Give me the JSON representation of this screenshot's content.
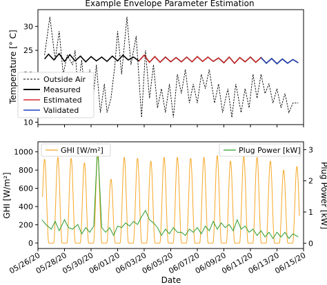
{
  "chart_data": [
    {
      "type": "line",
      "title": "Example Envelope Parameter Estimation",
      "ylabel": "Temperature [° C]",
      "ylim": [
        9.5,
        33.5
      ],
      "xlim": [
        0,
        20
      ],
      "yticks": [
        10,
        15,
        20,
        25,
        30
      ],
      "grid": false,
      "legend_position": "lower-left",
      "series": [
        {
          "name": "Outside Air",
          "color": "#000000",
          "style": "dashed",
          "x": [
            0.5,
            0.9,
            1.3,
            1.6,
            1.9,
            2.2,
            2.6,
            2.8,
            3.0,
            3.3,
            3.6,
            3.9,
            4.1,
            4.4,
            4.7,
            5.0,
            5.2,
            5.5,
            5.8,
            6.0,
            6.3,
            6.7,
            7.0,
            7.4,
            7.8,
            8.1,
            8.4,
            8.7,
            9.0,
            9.3,
            9.6,
            9.9,
            10.2,
            10.5,
            10.8,
            11.1,
            11.4,
            11.7,
            12.0,
            12.3,
            12.6,
            12.9,
            13.3,
            13.6,
            13.9,
            14.3,
            14.6,
            14.9,
            15.3,
            15.6,
            15.9,
            16.2,
            16.5,
            16.8,
            17.1,
            17.4,
            17.7,
            18.0,
            18.3,
            18.6,
            18.9,
            19.2,
            19.6
          ],
          "y": [
            24,
            32,
            23,
            29,
            20,
            24,
            22,
            25,
            17,
            23,
            13,
            21,
            13,
            22,
            12,
            18,
            12,
            15,
            22,
            29,
            20,
            32,
            22,
            28,
            11,
            25,
            15,
            22,
            13,
            17,
            12,
            18,
            11,
            20,
            16,
            21,
            14,
            18,
            14,
            20,
            17,
            21,
            14,
            18,
            12,
            17,
            11,
            18,
            12,
            17,
            13,
            20,
            15,
            20,
            16,
            18,
            14,
            17,
            13,
            16,
            12,
            14,
            14
          ]
        },
        {
          "name": "Measured",
          "color": "#000000",
          "style": "solid",
          "x": [
            0.5,
            0.8,
            1.2,
            1.6,
            2.0,
            2.4,
            2.8,
            3.2,
            3.6,
            4.0,
            4.4,
            4.8,
            5.2,
            5.6,
            6.0,
            6.4,
            6.8,
            7.2,
            7.6,
            8.0,
            8.4,
            8.8,
            9.2,
            9.6,
            10.0,
            10.4,
            10.8,
            11.2,
            11.6,
            12.0,
            12.4,
            12.8,
            13.2,
            13.6,
            14.0,
            14.4,
            14.8,
            15.2,
            15.6,
            16.0,
            16.4,
            16.8,
            17.2,
            17.6,
            18.0,
            18.4,
            18.8,
            19.2,
            19.6
          ],
          "y": [
            23.2,
            24.2,
            23.0,
            24.3,
            22.7,
            24.1,
            22.8,
            23.8,
            22.6,
            23.7,
            22.8,
            23.6,
            22.7,
            23.8,
            22.8,
            24.0,
            23.0,
            23.6,
            22.8,
            24.0,
            22.5,
            23.7,
            22.5,
            23.6,
            22.6,
            23.5,
            22.6,
            23.6,
            22.6,
            23.7,
            22.7,
            23.6,
            22.7,
            23.4,
            22.4,
            23.6,
            22.3,
            23.5,
            22.6,
            23.6,
            22.5,
            23.5,
            22.3,
            23.3,
            22.2,
            23.2,
            22.3,
            23.1,
            22.4
          ]
        },
        {
          "name": "Estimated",
          "color": "#d62728",
          "style": "solid",
          "x": [
            7.6,
            8.0,
            8.4,
            8.8,
            9.2,
            9.6,
            10.0,
            10.4,
            10.8,
            11.2,
            11.6,
            12.0,
            12.4,
            12.8,
            13.2,
            13.6,
            14.0,
            14.4,
            14.8,
            15.2,
            15.6,
            16.0,
            16.4,
            16.8
          ],
          "y": [
            22.8,
            24.0,
            22.5,
            23.7,
            22.5,
            23.6,
            22.6,
            23.5,
            22.6,
            23.6,
            22.6,
            23.7,
            22.7,
            23.6,
            22.7,
            23.4,
            22.4,
            23.6,
            22.3,
            23.5,
            22.6,
            23.6,
            22.5,
            23.5
          ]
        },
        {
          "name": "Validated",
          "color": "#1f3fbf",
          "style": "solid",
          "x": [
            16.8,
            17.2,
            17.6,
            18.0,
            18.4,
            18.8,
            19.2,
            19.6
          ],
          "y": [
            23.5,
            22.3,
            23.3,
            22.2,
            23.2,
            22.3,
            23.1,
            22.4
          ]
        }
      ]
    },
    {
      "type": "line",
      "xlabel": "Date",
      "ylabel": "GHI [W/m²]",
      "ylabel_right": "Plug Power [kW]",
      "ylim": [
        -60,
        1110
      ],
      "ylim_right": [
        -0.17,
        3.25
      ],
      "xlim": [
        0,
        20
      ],
      "yticks": [
        0,
        200,
        400,
        600,
        800,
        1000
      ],
      "yticks_right": [
        0,
        1,
        2,
        3
      ],
      "categories": [
        "05/26/20",
        "05/28/20",
        "05/30/20",
        "06/01/20",
        "06/03/20",
        "06/05/20",
        "06/07/20",
        "06/09/20",
        "06/11/20",
        "06/13/20",
        "06/15/20"
      ],
      "category_x": [
        0,
        2,
        4,
        6,
        8,
        10,
        12,
        14,
        16,
        18,
        20
      ],
      "grid": false,
      "series": [
        {
          "name": "GHI [W/m²]",
          "color": "#f5a623",
          "axis": "left",
          "peak_x": [
            0.5,
            1.5,
            2.5,
            3.5,
            4.5,
            5.5,
            6.5,
            7.5,
            8.5,
            9.5,
            10.5,
            11.5,
            12.5,
            13.5,
            14.5,
            15.5,
            16.5,
            17.5,
            18.5,
            19.5
          ],
          "peak_y": [
            920,
            940,
            930,
            880,
            960,
            700,
            940,
            930,
            900,
            940,
            940,
            930,
            940,
            960,
            900,
            950,
            940,
            900,
            800,
            840
          ],
          "baseline": 0
        },
        {
          "name": "Plug Power [kW]",
          "color": "#2a9d2a",
          "axis": "right",
          "x": [
            0.3,
            0.6,
            1.0,
            1.3,
            1.6,
            2.0,
            2.3,
            2.6,
            3.0,
            3.3,
            3.6,
            3.9,
            4.2,
            4.5,
            4.8,
            5.1,
            5.4,
            5.7,
            6.0,
            6.3,
            6.6,
            6.9,
            7.2,
            7.5,
            7.8,
            8.1,
            8.4,
            8.7,
            9.0,
            9.3,
            9.6,
            9.9,
            10.2,
            10.5,
            10.8,
            11.1,
            11.4,
            11.7,
            12.0,
            12.3,
            12.6,
            12.9,
            13.2,
            13.5,
            13.8,
            14.1,
            14.4,
            14.7,
            15.0,
            15.3,
            15.6,
            15.9,
            16.2,
            16.5,
            16.8,
            17.1,
            17.4,
            17.7,
            18.0,
            18.3,
            18.6,
            18.9,
            19.2,
            19.6
          ],
          "y": [
            0.75,
            0.6,
            0.45,
            0.7,
            0.4,
            0.75,
            0.5,
            0.45,
            0.6,
            0.3,
            0.5,
            0.35,
            0.55,
            3.2,
            0.5,
            0.35,
            0.5,
            0.25,
            0.55,
            0.5,
            0.65,
            0.55,
            0.7,
            0.6,
            0.85,
            1.05,
            0.75,
            0.65,
            0.5,
            0.25,
            0.45,
            0.3,
            0.5,
            0.35,
            0.35,
            0.25,
            0.45,
            0.35,
            0.5,
            0.3,
            0.55,
            0.4,
            0.7,
            0.45,
            0.65,
            0.5,
            0.6,
            0.4,
            0.75,
            0.45,
            0.55,
            0.35,
            0.45,
            0.25,
            0.4,
            0.2,
            0.35,
            0.15,
            0.35,
            0.2,
            0.35,
            0.15,
            0.3,
            0.2
          ]
        }
      ]
    }
  ]
}
